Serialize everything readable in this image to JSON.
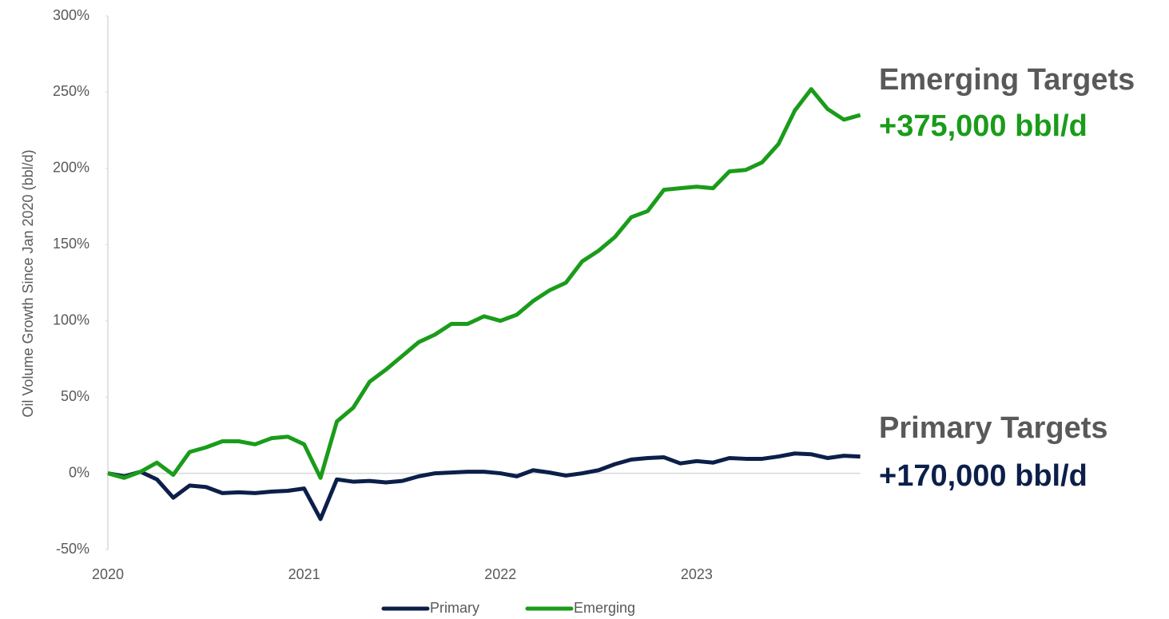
{
  "chart_data": {
    "type": "line",
    "y_axis_label": "Oil Volume Growth Since Jan 2020 (bbl/d)",
    "categories": [
      "2020",
      null,
      null,
      null,
      null,
      null,
      null,
      null,
      null,
      null,
      null,
      null,
      "2021",
      null,
      null,
      null,
      null,
      null,
      null,
      null,
      null,
      null,
      null,
      null,
      "2022",
      null,
      null,
      null,
      null,
      null,
      null,
      null,
      null,
      null,
      null,
      null,
      "2023",
      null,
      null,
      null,
      null,
      null,
      null,
      null,
      null,
      null,
      null
    ],
    "series": [
      {
        "name": "Primary",
        "color": "#0c1f4a",
        "values": [
          0,
          -2,
          1,
          -4,
          -16,
          -8,
          -9,
          -13,
          -12.5,
          -13,
          -12,
          -11.5,
          -10,
          -30,
          -4,
          -5.5,
          -5,
          -6,
          -5,
          -2,
          0,
          0.5,
          1,
          1,
          0,
          -2,
          2,
          0.5,
          -1.5,
          0,
          2,
          6,
          9,
          10,
          10.5,
          6.5,
          8,
          7,
          10,
          9.5,
          9.5,
          11,
          13,
          12.5,
          10,
          11.5,
          11
        ]
      },
      {
        "name": "Emerging",
        "color": "#1a9c1a",
        "values": [
          0,
          -3,
          1,
          7,
          -1,
          14,
          17,
          21,
          21,
          19,
          23,
          24,
          19,
          -3,
          34,
          43,
          60,
          68,
          77,
          86,
          91,
          98,
          98,
          103,
          100,
          104,
          113,
          120,
          125,
          139,
          146,
          155,
          168,
          172,
          186,
          187,
          188,
          187,
          198,
          199,
          204,
          216,
          238,
          252,
          239,
          232,
          235
        ]
      }
    ],
    "ylim": [
      -50,
      300
    ],
    "yticks": [
      {
        "value": -50,
        "label": "-50%"
      },
      {
        "value": 0,
        "label": "0%"
      },
      {
        "value": 50,
        "label": "50%"
      },
      {
        "value": 100,
        "label": "100%"
      },
      {
        "value": 150,
        "label": "150%"
      },
      {
        "value": 200,
        "label": "200%"
      },
      {
        "value": 250,
        "label": "250%"
      },
      {
        "value": 300,
        "label": "300%"
      }
    ],
    "legend": "bottom",
    "annotations": [
      {
        "title": "Emerging Targets",
        "text": "+375,000 bbl/d",
        "color": "#1a9c1a"
      },
      {
        "title": "Primary Targets",
        "text": "+170,000 bbl/d",
        "color": "#0c1f4a"
      }
    ]
  }
}
